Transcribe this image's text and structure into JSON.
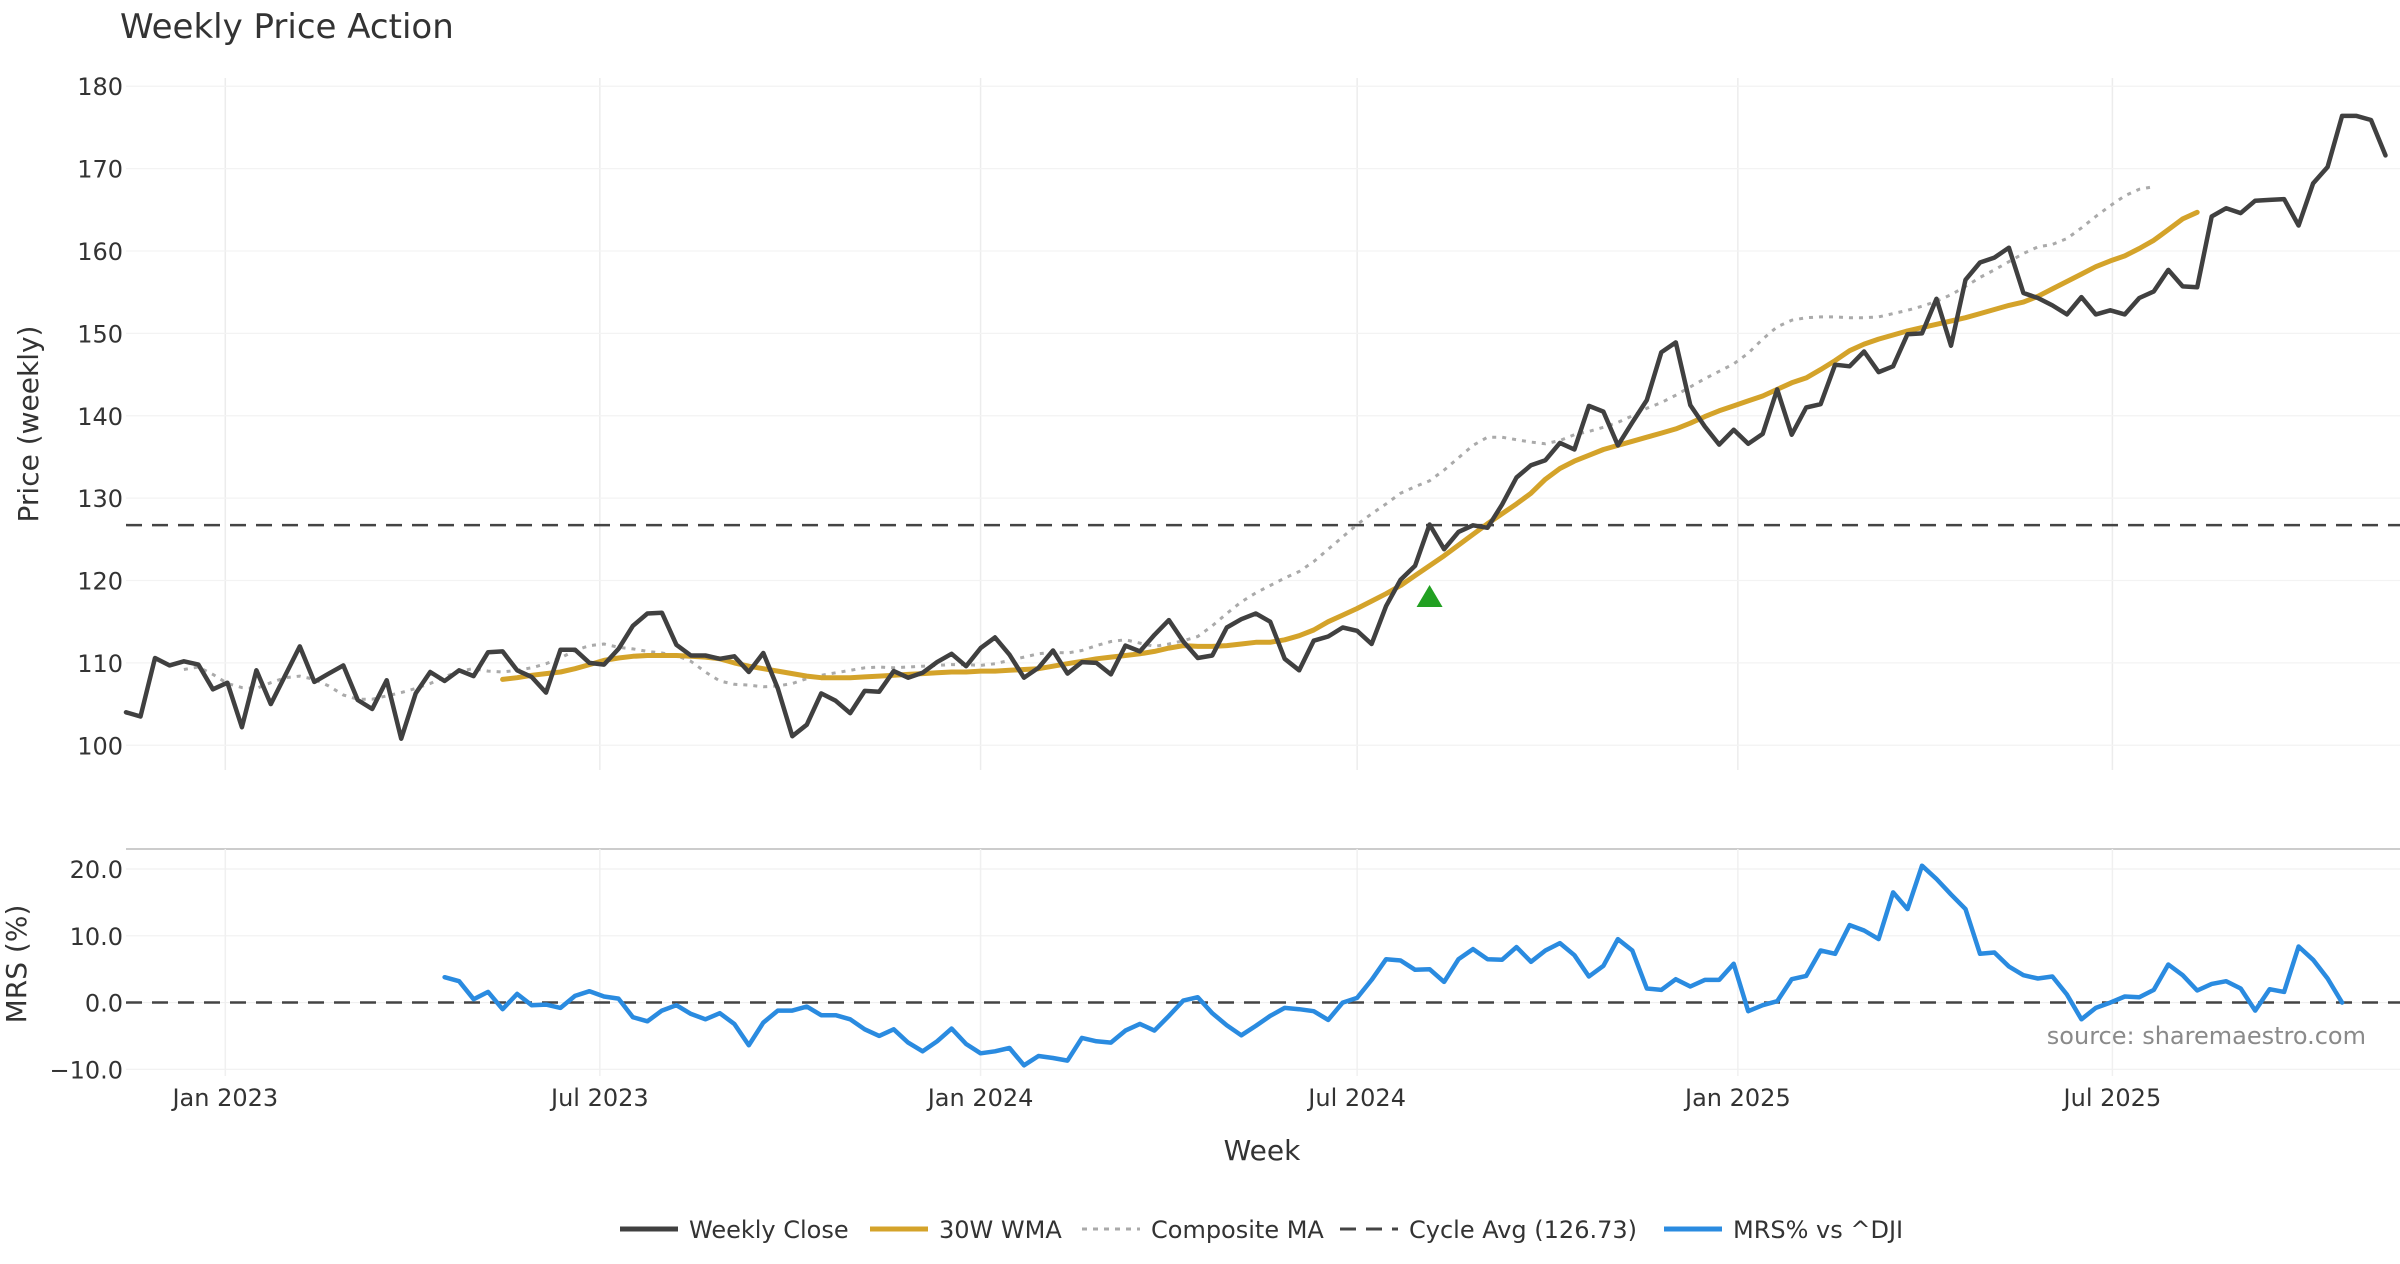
{
  "chart_data": [
    {
      "type": "line",
      "title": "Weekly Price Action",
      "xlabel": "",
      "ylabel": "Price (weekly)",
      "ylim": [
        97,
        181
      ],
      "yticks": [
        100,
        110,
        120,
        130,
        140,
        150,
        160,
        170,
        180
      ],
      "xlim": [
        "2022-11-14",
        "2025-11-17"
      ],
      "grid": true,
      "reference_line": {
        "name": "Cycle Avg (126.73)",
        "value": 126.73
      },
      "annotations": [
        {
          "type": "marker",
          "shape": "triangle-up",
          "color": "#22a022",
          "x": "2024-08-05",
          "y": 118
        }
      ],
      "series": [
        {
          "name": "Weekly Close",
          "color": "#404040",
          "style": "solid",
          "start": "2022-11-14",
          "values": [
            104.0,
            103.5,
            110.6,
            109.7,
            110.2,
            109.8,
            106.8,
            107.6,
            102.2,
            109.1,
            105.0,
            108.5,
            112.0,
            107.7,
            108.7,
            109.7,
            105.5,
            104.4,
            107.9,
            100.8,
            106.3,
            108.9,
            107.8,
            109.1,
            108.4,
            111.3,
            111.4,
            109.1,
            108.3,
            106.4,
            111.6,
            111.6,
            110.0,
            109.8,
            111.7,
            114.5,
            116.0,
            116.1,
            112.2,
            110.9,
            110.9,
            110.5,
            110.8,
            108.9,
            111.2,
            106.9,
            101.1,
            102.5,
            106.3,
            105.4,
            103.9,
            106.6,
            106.5,
            109.0,
            108.2,
            108.8,
            110.1,
            111.1,
            109.6,
            111.8,
            113.1,
            111.0,
            108.2,
            109.4,
            111.5,
            108.7,
            110.1,
            110.0,
            108.6,
            112.1,
            111.4,
            113.4,
            115.2,
            112.6,
            110.6,
            110.9,
            114.3,
            115.3,
            116.0,
            115.0,
            110.5,
            109.1,
            112.7,
            113.2,
            114.3,
            113.9,
            112.3,
            116.9,
            120.1,
            121.8,
            126.8,
            123.8,
            125.9,
            126.7,
            126.4,
            129.2,
            132.5,
            134.0,
            134.6,
            136.7,
            135.9,
            141.2,
            140.5,
            136.4,
            139.2,
            141.9,
            147.7,
            148.9,
            141.3,
            138.7,
            136.5,
            138.3,
            136.6,
            137.8,
            143.2,
            137.7,
            141.0,
            141.4,
            146.2,
            146.0,
            147.8,
            145.3,
            146.0,
            149.9,
            150.0,
            154.2,
            148.5,
            156.5,
            158.6,
            159.2,
            160.4,
            154.9,
            154.3,
            153.4,
            152.3,
            154.4,
            152.3,
            152.8,
            152.3,
            154.3,
            155.1,
            157.7,
            155.7,
            155.6,
            164.2,
            165.2,
            164.6,
            166.1,
            166.2,
            166.3,
            163.1,
            168.2,
            170.2,
            176.4,
            176.4,
            175.9,
            171.6
          ]
        },
        {
          "name": "30W WMA",
          "color": "#d4a32a",
          "style": "solid",
          "start": "2023-05-15",
          "values": [
            108.0,
            108.2,
            108.5,
            108.7,
            108.9,
            109.3,
            109.8,
            110.3,
            110.6,
            110.8,
            110.9,
            110.9,
            110.9,
            110.8,
            110.7,
            110.5,
            110.0,
            109.6,
            109.3,
            109.0,
            108.7,
            108.4,
            108.2,
            108.2,
            108.2,
            108.3,
            108.4,
            108.5,
            108.6,
            108.7,
            108.8,
            108.9,
            108.9,
            109.0,
            109.0,
            109.1,
            109.2,
            109.3,
            109.6,
            109.9,
            110.2,
            110.5,
            110.7,
            110.9,
            111.1,
            111.4,
            111.8,
            112.1,
            112.0,
            112.0,
            112.1,
            112.3,
            112.5,
            112.5,
            112.8,
            113.3,
            114.0,
            115.0,
            115.8,
            116.6,
            117.5,
            118.4,
            119.4,
            120.6,
            121.8,
            123.0,
            124.3,
            125.6,
            126.9,
            128.1,
            129.3,
            130.6,
            132.3,
            133.6,
            134.5,
            135.2,
            135.9,
            136.4,
            136.9,
            137.4,
            137.9,
            138.4,
            139.1,
            139.9,
            140.6,
            141.2,
            141.8,
            142.4,
            143.2,
            144.0,
            144.6,
            145.6,
            146.7,
            147.9,
            148.7,
            149.3,
            149.8,
            150.3,
            150.7,
            151.1,
            151.5,
            151.9,
            152.4,
            152.9,
            153.4,
            153.8,
            154.5,
            155.4,
            156.3,
            157.2,
            158.1,
            158.8,
            159.4,
            160.3,
            161.3,
            162.6,
            163.9,
            164.7
          ]
        },
        {
          "name": "Composite MA",
          "color": "#aaaaaa",
          "style": "dotted",
          "start": "2022-12-12",
          "values": [
            109.2,
            109.5,
            108.6,
            107.5,
            107.0,
            106.9,
            107.6,
            108.2,
            108.4,
            108.0,
            107.2,
            106.1,
            105.6,
            105.6,
            106.0,
            106.4,
            106.9,
            107.5,
            108.3,
            109.0,
            109.3,
            109.0,
            108.9,
            109.1,
            109.4,
            109.9,
            110.6,
            111.5,
            112.1,
            112.3,
            111.9,
            111.7,
            111.4,
            111.2,
            110.9,
            110.2,
            108.9,
            107.8,
            107.4,
            107.3,
            107.1,
            107.2,
            107.5,
            108.1,
            108.5,
            108.8,
            109.1,
            109.4,
            109.5,
            109.4,
            109.5,
            109.6,
            109.7,
            109.8,
            109.8,
            109.7,
            109.9,
            110.3,
            110.7,
            111.1,
            111.3,
            111.2,
            111.5,
            112.1,
            112.6,
            112.8,
            112.4,
            112.0,
            112.3,
            112.7,
            113.2,
            114.5,
            116.0,
            117.4,
            118.5,
            119.4,
            120.3,
            121.1,
            122.3,
            123.8,
            125.3,
            126.8,
            128.1,
            129.3,
            130.6,
            131.4,
            132.1,
            133.4,
            134.9,
            136.4,
            137.4,
            137.4,
            137.1,
            136.8,
            136.6,
            137.0,
            137.7,
            138.1,
            138.6,
            139.2,
            140.0,
            140.9,
            141.6,
            142.5,
            143.5,
            144.5,
            145.4,
            146.3,
            147.6,
            149.3,
            150.8,
            151.6,
            151.9,
            152.0,
            152.0,
            151.9,
            151.9,
            152.0,
            152.4,
            152.8,
            153.3,
            153.9,
            154.7,
            155.7,
            156.8,
            157.7,
            158.7,
            159.7,
            160.5,
            160.8,
            161.5,
            162.8,
            164.2,
            165.5,
            166.7,
            167.5,
            167.8
          ]
        }
      ]
    },
    {
      "type": "line",
      "title": "",
      "xlabel": "Week",
      "ylabel": "MRS (%)",
      "ylim": [
        -11,
        23
      ],
      "yticks": [
        "−10.0",
        "0.0",
        "10.0",
        "20.0"
      ],
      "ytick_values": [
        -10,
        0,
        10,
        20
      ],
      "xlim": [
        "2022-11-14",
        "2025-11-17"
      ],
      "xticks": [
        {
          "label": "Jan 2023",
          "date": "2023-01-01"
        },
        {
          "label": "Jul 2023",
          "date": "2023-07-01"
        },
        {
          "label": "Jan 2024",
          "date": "2024-01-01"
        },
        {
          "label": "Jul 2024",
          "date": "2024-07-01"
        },
        {
          "label": "Jan 2025",
          "date": "2025-01-01"
        },
        {
          "label": "Jul 2025",
          "date": "2025-07-01"
        }
      ],
      "grid": true,
      "reference_line": {
        "name": "zero",
        "value": 0
      },
      "series": [
        {
          "name": "MRS% vs ^DJI",
          "color": "#2a8be0",
          "style": "solid",
          "start": "2023-04-17",
          "values": [
            3.8,
            3.2,
            0.5,
            1.6,
            -1.0,
            1.3,
            -0.4,
            -0.3,
            -0.8,
            1.0,
            1.7,
            0.9,
            0.6,
            -2.2,
            -2.8,
            -1.2,
            -0.4,
            -1.7,
            -2.5,
            -1.6,
            -3.2,
            -6.4,
            -3.0,
            -1.2,
            -1.2,
            -0.6,
            -1.9,
            -1.9,
            -2.5,
            -4.0,
            -5.0,
            -4.0,
            -6.0,
            -7.3,
            -5.8,
            -3.9,
            -6.2,
            -7.6,
            -7.3,
            -6.8,
            -9.4,
            -8.0,
            -8.3,
            -8.7,
            -5.3,
            -5.8,
            -6.0,
            -4.2,
            -3.2,
            -4.2,
            -2.0,
            0.3,
            0.8,
            -1.6,
            -3.4,
            -4.9,
            -3.5,
            -2.0,
            -0.8,
            -1.0,
            -1.3,
            -2.6,
            0.0,
            0.7,
            3.4,
            6.5,
            6.3,
            4.9,
            5.0,
            3.1,
            6.5,
            8.0,
            6.5,
            6.4,
            8.3,
            6.1,
            7.8,
            8.9,
            7.1,
            3.9,
            5.5,
            9.5,
            7.8,
            2.1,
            1.9,
            3.5,
            2.4,
            3.4,
            3.4,
            5.8,
            -1.3,
            -0.4,
            0.2,
            3.5,
            4.0,
            7.8,
            7.3,
            11.6,
            10.8,
            9.5,
            16.5,
            14.0,
            20.5,
            18.5,
            16.2,
            14.0,
            7.3,
            7.5,
            5.4,
            4.1,
            3.6,
            3.9,
            1.2,
            -2.5,
            -0.8,
            0.0,
            0.9,
            0.8,
            1.9,
            5.7,
            4.1,
            1.8,
            2.8,
            3.2,
            2.1,
            -1.2,
            2.0,
            1.6,
            8.4,
            6.4,
            3.6,
            0.0
          ]
        }
      ]
    }
  ],
  "legend": {
    "placement": "bottom-center",
    "items": [
      {
        "label": "Weekly Close",
        "color": "#404040",
        "style": "solid"
      },
      {
        "label": "30W WMA",
        "color": "#d4a32a",
        "style": "solid"
      },
      {
        "label": "Composite MA",
        "color": "#aaaaaa",
        "style": "dotted"
      },
      {
        "label": "Cycle Avg (126.73)",
        "color": "#444444",
        "style": "dashed"
      },
      {
        "label": "MRS% vs ^DJI",
        "color": "#2a8be0",
        "style": "solid"
      }
    ]
  },
  "source_note": "source: sharemaestro.com"
}
